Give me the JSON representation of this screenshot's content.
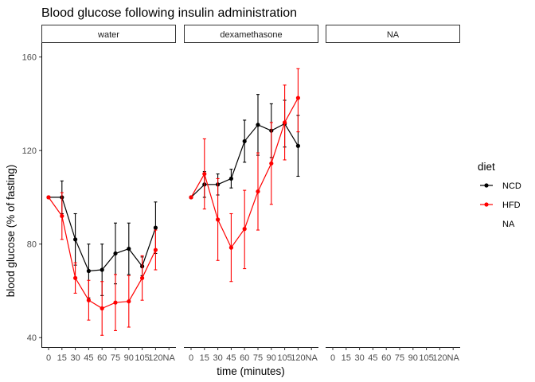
{
  "chart_data": {
    "type": "line",
    "title": "Blood glucose following insulin administration",
    "xlabel": "time (minutes)",
    "ylabel": "blood glucose (% of fasting)",
    "x_categories": [
      "0",
      "15",
      "30",
      "45",
      "60",
      "75",
      "90",
      "105",
      "120",
      "NA"
    ],
    "y_ticks": [
      40,
      80,
      120,
      160
    ],
    "ylim": [
      36,
      166
    ],
    "grid": false,
    "legend": {
      "title": "diet",
      "position": "right",
      "entries": [
        "NCD",
        "HFD",
        "NA"
      ]
    },
    "colors": {
      "NCD": "#000000",
      "HFD": "#ff0000"
    },
    "facets": [
      {
        "label": "water",
        "series": [
          {
            "name": "NCD",
            "color": "#000000",
            "x": [
              "0",
              "15",
              "30",
              "45",
              "60",
              "75",
              "90",
              "105",
              "120"
            ],
            "y": [
              100,
              100,
              82,
              68.5,
              69,
              76,
              78,
              70.5,
              87
            ],
            "ymin": [
              100,
              93,
              71,
              57,
              58,
              63,
              67,
              66.5,
              76
            ],
            "ymax": [
              100,
              107,
              93,
              80,
              80,
              89,
              89,
              74.5,
              98
            ]
          },
          {
            "name": "HFD",
            "color": "#ff0000",
            "x": [
              "0",
              "15",
              "30",
              "45",
              "60",
              "75",
              "90",
              "105",
              "120"
            ],
            "y": [
              100,
              92,
              65.5,
              56,
              52.5,
              55,
              55.5,
              65.5,
              77.5
            ],
            "ymin": [
              100,
              82,
              59,
              47.5,
              41,
              43,
              44.5,
              56,
              69
            ],
            "ymax": [
              100,
              102,
              72,
              64.5,
              64,
              67,
              66.5,
              75,
              86
            ]
          }
        ]
      },
      {
        "label": "dexamethasone",
        "series": [
          {
            "name": "NCD",
            "color": "#000000",
            "x": [
              "0",
              "15",
              "30",
              "45",
              "60",
              "75",
              "90",
              "105",
              "120"
            ],
            "y": [
              100,
              105.5,
              105.5,
              108,
              124,
              131,
              128.5,
              131.5,
              122
            ],
            "ymin": [
              100,
              100,
              101,
              104,
              115,
              118,
              117,
              121.5,
              109
            ],
            "ymax": [
              100,
              111,
              110,
              112,
              133,
              144,
              140,
              141.5,
              135
            ]
          },
          {
            "name": "HFD",
            "color": "#ff0000",
            "x": [
              "0",
              "15",
              "30",
              "45",
              "60",
              "75",
              "90",
              "105",
              "120"
            ],
            "y": [
              100,
              110,
              90.5,
              78.5,
              86.5,
              102.5,
              114.5,
              132,
              142.5
            ],
            "ymin": [
              100,
              95,
              73,
              64,
              69.5,
              86,
              97,
              116,
              128
            ],
            "ymax": [
              100,
              125,
              108,
              93,
              103,
              119,
              132,
              148,
              155
            ]
          }
        ]
      },
      {
        "label": "NA",
        "series": []
      }
    ]
  }
}
